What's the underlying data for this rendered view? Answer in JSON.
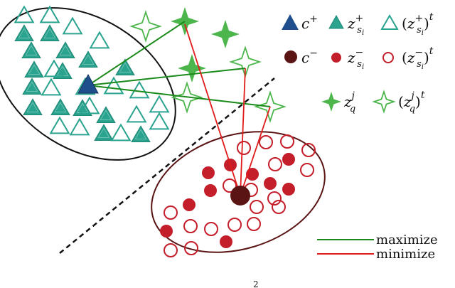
{
  "colors": {
    "teal": "#2aa38f",
    "teal_dark": "#1f8a78",
    "navy": "#1f4e8c",
    "green_star": "#4cb64c",
    "green_line": "#1a8a1a",
    "red_line": "#e11a1a",
    "dark_red": "#5a1414",
    "red_dot": "#c41e2a",
    "ellipse_stroke": "#111111"
  },
  "legend": {
    "c_plus": {
      "base": "c",
      "sup": "+"
    },
    "z_s_plus": {
      "base": "z",
      "sub": "s",
      "subsub": "i",
      "sup": "+"
    },
    "z_s_plus_t": {
      "open": "(",
      "base": "z",
      "sub": "s",
      "subsub": "i",
      "sup": "+",
      "close": ")",
      "outer_sup": "t"
    },
    "c_minus": {
      "base": "c",
      "sup": "−"
    },
    "z_s_minus": {
      "base": "z",
      "sub": "s",
      "subsub": "i",
      "sup": "−"
    },
    "z_s_minus_t": {
      "open": "(",
      "base": "z",
      "sub": "s",
      "subsub": "i",
      "sup": "−",
      "close": ")",
      "outer_sup": "t"
    },
    "z_q": {
      "base": "z",
      "sub": "q",
      "sup": "j"
    },
    "z_q_t": {
      "open": "(",
      "base": "z",
      "sub": "q",
      "sup": "j",
      "close": ")",
      "outer_sup": "t"
    }
  },
  "line_legend": {
    "maximize": "maximize",
    "minimize": "minimize"
  },
  "footer_text": "2"
}
